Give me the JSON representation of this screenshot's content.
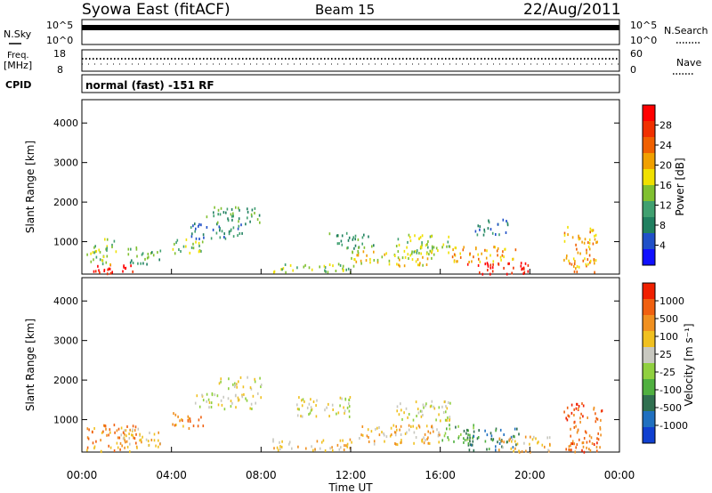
{
  "header": {
    "title": "Syowa East (fitACF)",
    "beam": "Beam 15",
    "date": "22/Aug/2011"
  },
  "top_panels": {
    "nsky_label": "N.Sky",
    "nsky_ticks": [
      "10^5",
      "10^0"
    ],
    "nsearch_label": "N.Search",
    "nsearch_ticks": [
      "10^5",
      "10^0"
    ],
    "freq_label": "Freq.",
    "freq_unit": "[MHz]",
    "freq_ticks": [
      "18",
      "8"
    ],
    "nave_label": "Nave",
    "nave_ticks": [
      "60",
      "0"
    ],
    "cpid_label": "CPID",
    "cpid_text": "normal (fast) -151 RF"
  },
  "chart_data": [
    {
      "type": "heatmap",
      "name": "power",
      "ylabel": "Slant Range [km]",
      "ylim": [
        180,
        4590
      ],
      "yticks": [
        "4000",
        "3000",
        "2000",
        "1000"
      ],
      "ytick_values": [
        4000,
        3000,
        2000,
        1000
      ],
      "colorbar_label": "Power [dB]",
      "colorbar_ticks": [
        "28",
        "24",
        "20",
        "16",
        "12",
        "8",
        "4"
      ],
      "colorbar_colors": [
        "#1010ff",
        "#2050c8",
        "#208060",
        "#40a070",
        "#80c030",
        "#f0e000",
        "#f0a000",
        "#f06000",
        "#f03000",
        "#ff0000"
      ],
      "regions": [
        {
          "t0": 0.3,
          "t1": 2.5,
          "r0": 200,
          "r1": 450,
          "level": 9
        },
        {
          "t0": 0.2,
          "t1": 1.5,
          "r0": 450,
          "r1": 1100,
          "level": 4
        },
        {
          "t0": 2.0,
          "t1": 3.5,
          "r0": 450,
          "r1": 900,
          "level": 3
        },
        {
          "t0": 4.0,
          "t1": 5.5,
          "r0": 700,
          "r1": 1100,
          "level": 4
        },
        {
          "t0": 4.8,
          "t1": 7.5,
          "r0": 1100,
          "r1": 1500,
          "level": 2
        },
        {
          "t0": 5.5,
          "t1": 8.0,
          "r0": 1500,
          "r1": 1900,
          "level": 3
        },
        {
          "t0": 8.5,
          "t1": 12.0,
          "r0": 250,
          "r1": 500,
          "level": 4
        },
        {
          "t0": 12.0,
          "t1": 16.0,
          "r0": 400,
          "r1": 800,
          "level": 5
        },
        {
          "t0": 11.0,
          "t1": 13.0,
          "r0": 850,
          "r1": 1250,
          "level": 3
        },
        {
          "t0": 14.0,
          "t1": 16.5,
          "r0": 700,
          "r1": 1200,
          "level": 4
        },
        {
          "t0": 17.0,
          "t1": 20.0,
          "r0": 200,
          "r1": 500,
          "level": 9
        },
        {
          "t0": 16.5,
          "t1": 19.5,
          "r0": 500,
          "r1": 900,
          "level": 6
        },
        {
          "t0": 17.5,
          "t1": 19.0,
          "r0": 1200,
          "r1": 1600,
          "level": 2
        },
        {
          "t0": 21.5,
          "t1": 23.0,
          "r0": 250,
          "r1": 1400,
          "level": 6
        }
      ]
    },
    {
      "type": "heatmap",
      "name": "velocity",
      "ylabel": "Slant Range [km]",
      "ylim": [
        180,
        4590
      ],
      "yticks": [
        "4000",
        "3000",
        "2000",
        "1000"
      ],
      "ytick_values": [
        4000,
        3000,
        2000,
        1000
      ],
      "xlabel": "Time UT",
      "xticks": [
        "00:00",
        "04:00",
        "08:00",
        "12:00",
        "16:00",
        "20:00",
        "00:00"
      ],
      "xtick_values": [
        0,
        4,
        8,
        12,
        16,
        20,
        24
      ],
      "colorbar_label": "Velocity [m s⁻¹]",
      "colorbar_ticks": [
        "1000",
        "500",
        "100",
        "25",
        "-25",
        "-100",
        "-500",
        "-1000"
      ],
      "colorbar_colors": [
        "#1040d0",
        "#2070c0",
        "#307050",
        "#50b040",
        "#90d040",
        "#c8c8c0",
        "#f0c020",
        "#f09020",
        "#f06010",
        "#f02000"
      ],
      "regions": [
        {
          "t0": 0.2,
          "t1": 2.5,
          "r0": 200,
          "r1": 900,
          "level": 7
        },
        {
          "t0": 1.5,
          "t1": 3.5,
          "r0": 300,
          "r1": 800,
          "level": 6
        },
        {
          "t0": 4.0,
          "t1": 5.5,
          "r0": 800,
          "r1": 1200,
          "level": 7
        },
        {
          "t0": 5.0,
          "t1": 8.0,
          "r0": 1300,
          "r1": 1700,
          "level": 5
        },
        {
          "t0": 6.0,
          "t1": 8.0,
          "r0": 1800,
          "r1": 2100,
          "level": 5
        },
        {
          "t0": 8.5,
          "t1": 12.0,
          "r0": 250,
          "r1": 550,
          "level": 6
        },
        {
          "t0": 9.5,
          "t1": 12.0,
          "r0": 1100,
          "r1": 1600,
          "level": 5
        },
        {
          "t0": 12.0,
          "t1": 16.0,
          "r0": 400,
          "r1": 900,
          "level": 6
        },
        {
          "t0": 14.0,
          "t1": 16.5,
          "r0": 1000,
          "r1": 1500,
          "level": 5
        },
        {
          "t0": 16.0,
          "t1": 17.5,
          "r0": 400,
          "r1": 900,
          "level": 3
        },
        {
          "t0": 17.0,
          "t1": 19.5,
          "r0": 250,
          "r1": 800,
          "level": 2
        },
        {
          "t0": 18.5,
          "t1": 21.0,
          "r0": 200,
          "r1": 600,
          "level": 6
        },
        {
          "t0": 21.5,
          "t1": 23.2,
          "r0": 200,
          "r1": 1500,
          "level": 8
        }
      ]
    }
  ]
}
